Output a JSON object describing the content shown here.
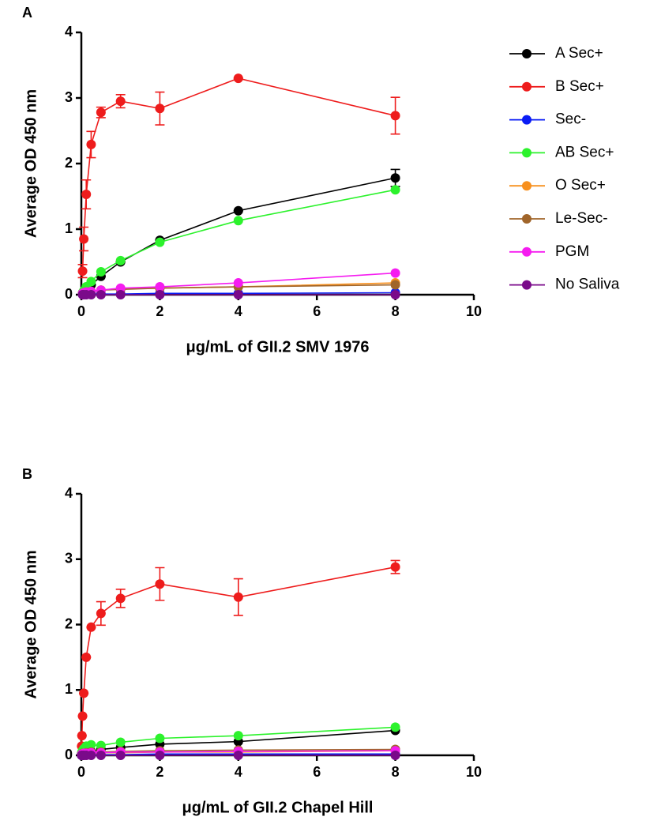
{
  "chart_data": [
    {
      "type": "line",
      "panel_label": "A",
      "xlabel": "μg/mL of GII.2 SMV 1976",
      "ylabel": "Average OD 450 nm",
      "xlim": [
        0,
        10
      ],
      "xticks": [
        0,
        2,
        4,
        6,
        8,
        10
      ],
      "ylim": [
        0,
        4
      ],
      "yticks": [
        0,
        1,
        2,
        3,
        4
      ],
      "legend": "right",
      "x": [
        0.03125,
        0.0625,
        0.125,
        0.25,
        0.5,
        1,
        2,
        4,
        8
      ],
      "series": [
        {
          "name": "A Sec+",
          "color": "#000000",
          "values": [
            0.02,
            0.04,
            0.08,
            0.15,
            0.28,
            0.5,
            0.83,
            1.28,
            1.78
          ],
          "errors": [
            0,
            0,
            0,
            0,
            0,
            0,
            0,
            0,
            0.13
          ]
        },
        {
          "name": "B Sec+",
          "color": "#ee1c1c",
          "values": [
            0.36,
            0.85,
            1.53,
            2.29,
            2.78,
            2.95,
            2.84,
            3.3,
            2.73
          ],
          "errors": [
            0.1,
            0.18,
            0.22,
            0.2,
            0.08,
            0.1,
            0.25,
            0,
            0.28
          ]
        },
        {
          "name": "Sec-",
          "color": "#0a1cf5",
          "values": [
            0.01,
            0.01,
            0.01,
            0.01,
            0.01,
            0.01,
            0.02,
            0.02,
            0.03
          ]
        },
        {
          "name": "AB Sec+",
          "color": "#2cf22c",
          "values": [
            0.03,
            0.06,
            0.12,
            0.2,
            0.35,
            0.52,
            0.8,
            1.13,
            1.6
          ]
        },
        {
          "name": "O Sec+",
          "color": "#f7901e",
          "values": [
            0.02,
            0.03,
            0.04,
            0.05,
            0.07,
            0.09,
            0.1,
            0.12,
            0.18
          ]
        },
        {
          "name": "Le-Sec-",
          "color": "#a0652a",
          "values": [
            0.02,
            0.03,
            0.04,
            0.05,
            0.07,
            0.08,
            0.1,
            0.12,
            0.15
          ]
        },
        {
          "name": "PGM",
          "color": "#f51cf0",
          "values": [
            0.02,
            0.03,
            0.04,
            0.05,
            0.07,
            0.1,
            0.12,
            0.18,
            0.33
          ]
        },
        {
          "name": "No Saliva",
          "color": "#7a0a8a",
          "values": [
            0,
            0,
            0,
            0,
            0,
            0,
            0,
            0,
            0
          ]
        }
      ]
    },
    {
      "type": "line",
      "panel_label": "B",
      "xlabel": "μg/mL of GII.2 Chapel Hill",
      "ylabel": "Average OD 450 nm",
      "xlim": [
        0,
        10
      ],
      "xticks": [
        0,
        2,
        4,
        6,
        8,
        10
      ],
      "ylim": [
        0,
        4
      ],
      "yticks": [
        0,
        1,
        2,
        3,
        4
      ],
      "x": [
        0.0078,
        0.0156,
        0.03125,
        0.0625,
        0.125,
        0.25,
        0.5,
        1,
        2,
        4,
        8
      ],
      "series": [
        {
          "color": "#000000",
          "values": [
            0,
            0.01,
            0.02,
            0.03,
            0.04,
            0.06,
            0.09,
            0.12,
            0.17,
            0.21,
            0.38
          ]
        },
        {
          "color": "#ee1c1c",
          "values": [
            0.14,
            0.3,
            0.6,
            0.95,
            1.5,
            1.96,
            2.17,
            2.4,
            2.62,
            2.42,
            2.88
          ],
          "errors": [
            0,
            0,
            0,
            0,
            0,
            0,
            0.18,
            0.14,
            0.25,
            0.28,
            0.1
          ]
        },
        {
          "color": "#0a1cf5",
          "values": [
            0,
            0,
            0,
            0.01,
            0.01,
            0.01,
            0.01,
            0.01,
            0.02,
            0.02,
            0.02
          ]
        },
        {
          "color": "#2cf22c",
          "values": [
            0.03,
            0.05,
            0.07,
            0.1,
            0.14,
            0.16,
            0.15,
            0.2,
            0.26,
            0.3,
            0.43
          ]
        },
        {
          "color": "#f7901e",
          "values": [
            0.01,
            0.01,
            0.02,
            0.02,
            0.03,
            0.03,
            0.04,
            0.04,
            0.05,
            0.05,
            0.07
          ]
        },
        {
          "color": "#a0652a",
          "values": [
            0.01,
            0.02,
            0.03,
            0.03,
            0.04,
            0.05,
            0.05,
            0.06,
            0.07,
            0.08,
            0.09
          ]
        },
        {
          "color": "#f51cf0",
          "values": [
            0.01,
            0.02,
            0.02,
            0.03,
            0.03,
            0.04,
            0.04,
            0.05,
            0.05,
            0.06,
            0.07
          ]
        },
        {
          "color": "#7a0a8a",
          "values": [
            0,
            0,
            0,
            0,
            0,
            0,
            0,
            0,
            0,
            0,
            0
          ]
        }
      ]
    }
  ]
}
